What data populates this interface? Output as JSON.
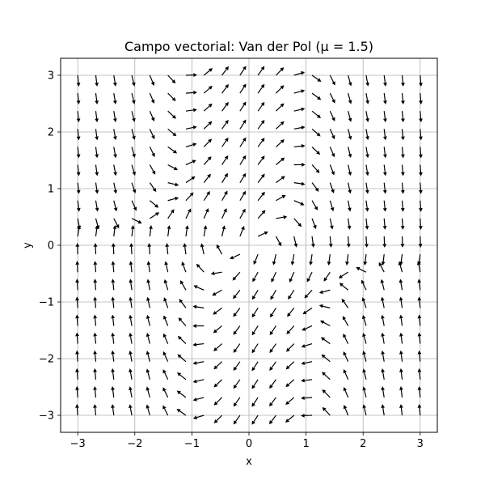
{
  "chart_data": {
    "type": "quiver",
    "title": "Campo vectorial: Van der Pol (μ = 1.5)",
    "xlabel": "x",
    "ylabel": "y",
    "xlim": [
      -3.3,
      3.3
    ],
    "ylim": [
      -3.3,
      3.3
    ],
    "xticks": [
      -3,
      -2,
      -1,
      0,
      1,
      2,
      3
    ],
    "yticks": [
      -3,
      -2,
      -1,
      0,
      1,
      2,
      3
    ],
    "xtick_labels": [
      "−3",
      "−2",
      "−1",
      "0",
      "1",
      "2",
      "3"
    ],
    "ytick_labels": [
      "−3",
      "−2",
      "−1",
      "0",
      "1",
      "2",
      "3"
    ],
    "grid": true,
    "grid_range": {
      "min": -3,
      "max": 3,
      "count": 20
    },
    "mu": 1.5,
    "equations": {
      "dx": "y",
      "dy": "mu*(1-x^2)*y - x"
    },
    "normalized_arrows": true,
    "arrow_color": "#000000",
    "grid_color": "#b0b0b0"
  }
}
